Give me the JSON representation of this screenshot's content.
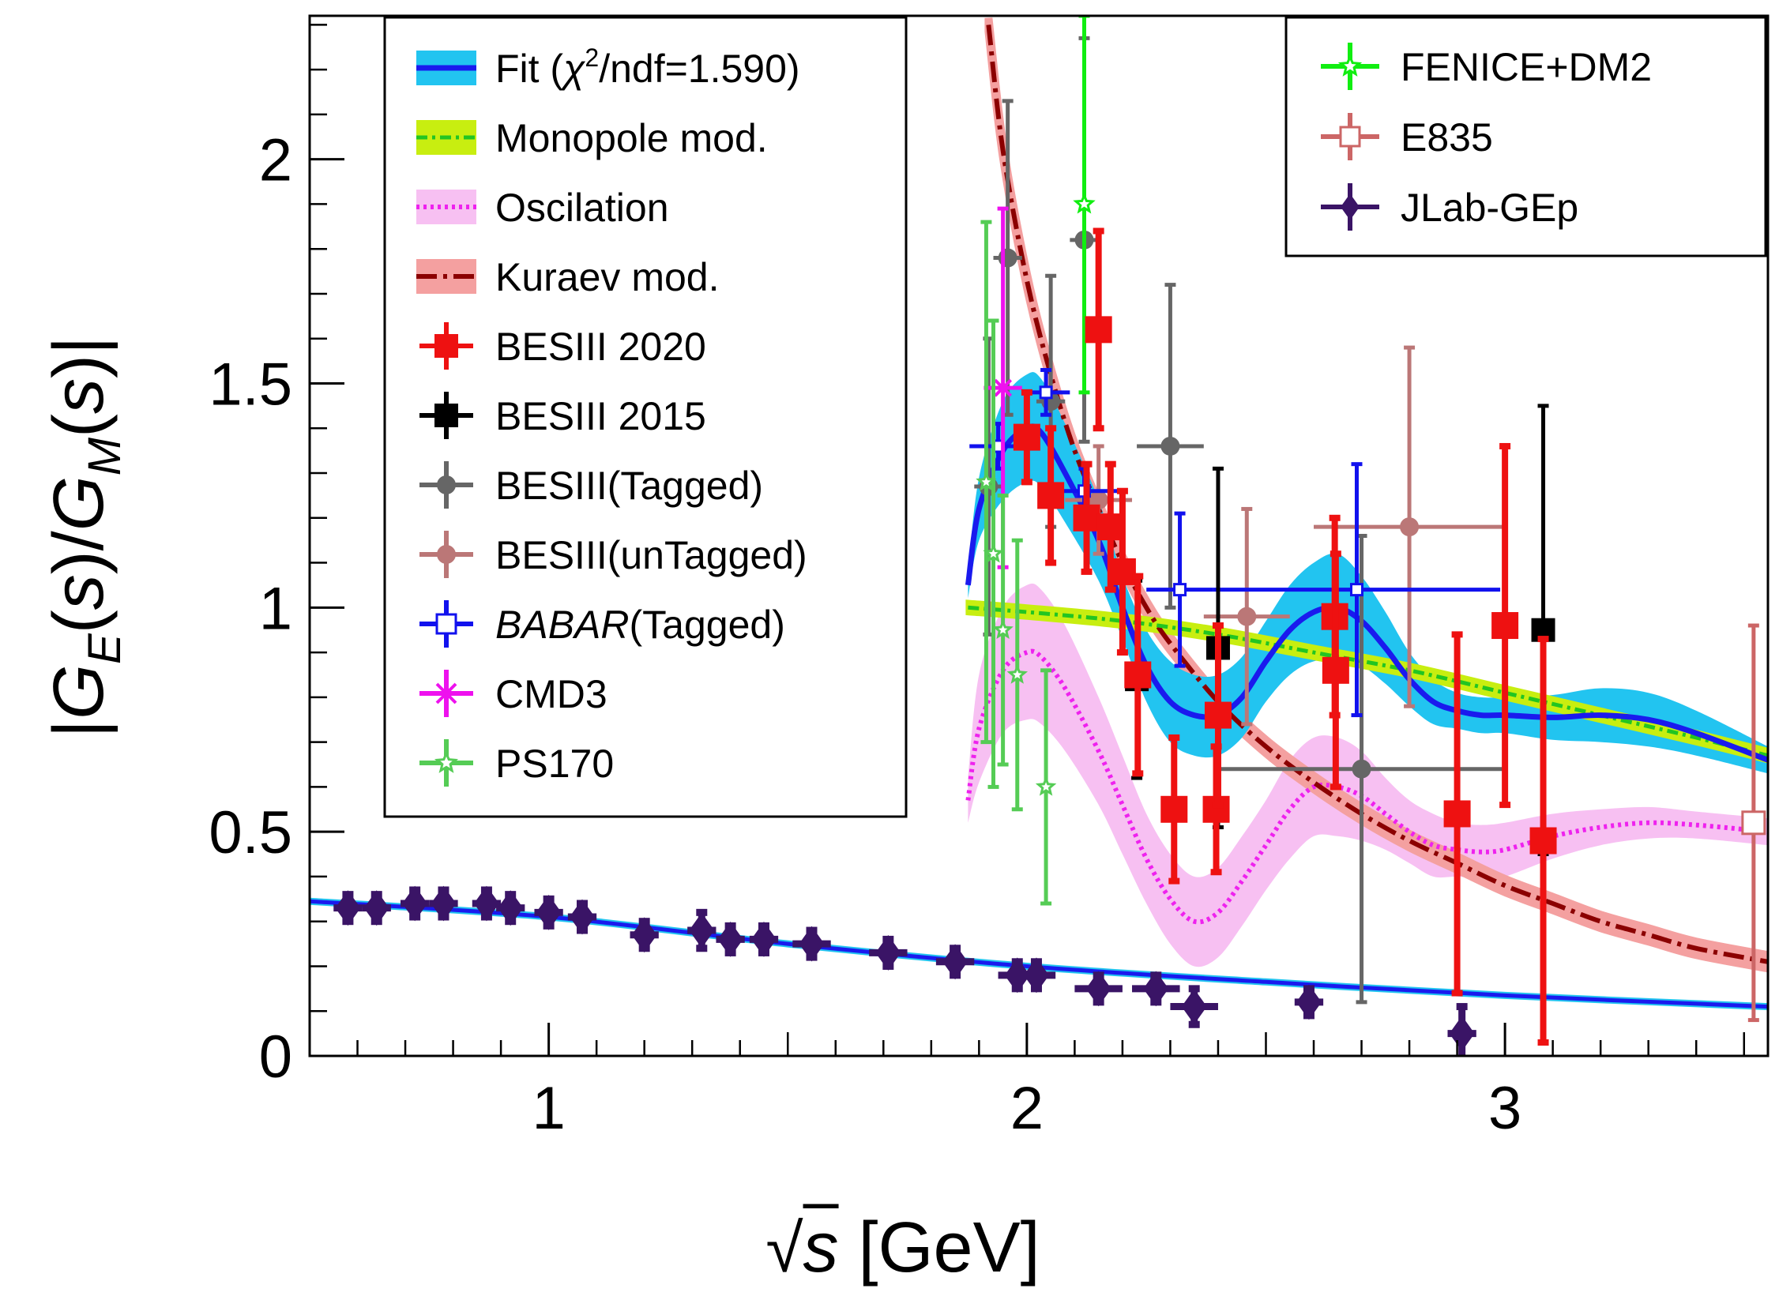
{
  "chart_data": {
    "type": "scatter",
    "xlabel": "√s [GeV]",
    "ylabel": "|G_E(s)/G_M(s)|",
    "xlim": [
      0.5,
      3.55
    ],
    "ylim": [
      0,
      2.32
    ],
    "x_ticks": [
      1,
      2,
      3
    ],
    "y_ticks": [
      0,
      0.5,
      1,
      1.5,
      2
    ],
    "tick_labels_x": [
      "1",
      "2",
      "3"
    ],
    "tick_labels_y": [
      "0",
      "0.5",
      "1",
      "1.5",
      "2"
    ],
    "legend_left": [
      {
        "key": "fit",
        "label": "Fit (χ²/ndf=1.590)"
      },
      {
        "key": "monopole",
        "label": "Monopole mod."
      },
      {
        "key": "oscillation",
        "label": "Oscilation"
      },
      {
        "key": "kuraev",
        "label": "Kuraev mod."
      },
      {
        "key": "besiii2020",
        "label": "BESIII 2020"
      },
      {
        "key": "besiii2015",
        "label": "BESIII 2015"
      },
      {
        "key": "besiii_tagged",
        "label": "BESIII(Tagged)"
      },
      {
        "key": "besiii_untagged",
        "label": "BESIII(unTagged)"
      },
      {
        "key": "babar",
        "label": "BABAR(Tagged)"
      },
      {
        "key": "cmd3",
        "label": "CMD3"
      },
      {
        "key": "ps170",
        "label": "PS170"
      }
    ],
    "legend_right": [
      {
        "key": "fenice",
        "label": "FENICE+DM2"
      },
      {
        "key": "e835",
        "label": "E835"
      },
      {
        "key": "jlab",
        "label": "JLab-GEp"
      }
    ],
    "colors": {
      "fit_line": "#1a1aee",
      "fit_band": "#22c4f0",
      "monopole_line": "#22c522",
      "monopole_band": "#c8ee10",
      "oscillation_line": "#ee22ee",
      "oscillation_band": "#f7c0f2",
      "kuraev_line": "#8b0000",
      "kuraev_band": "#f4a0a0",
      "besiii2020": "#ee1111",
      "besiii2015": "#000000",
      "besiii_tagged": "#666666",
      "besiii_untagged": "#bb7777",
      "babar": "#1111ee",
      "cmd3": "#ee11ee",
      "ps170": "#55cc55",
      "fenice": "#11ee11",
      "e835": "#cc6666",
      "jlab": "#3a1466",
      "jlab_fit": "#1a8cff"
    },
    "curves": {
      "fit": {
        "x": [
          1.877,
          1.9,
          1.95,
          2.0,
          2.03,
          2.08,
          2.15,
          2.2,
          2.25,
          2.3,
          2.35,
          2.4,
          2.45,
          2.5,
          2.55,
          2.6,
          2.65,
          2.7,
          2.75,
          2.8,
          2.85,
          2.9,
          2.95,
          3.0,
          3.1,
          3.2,
          3.3,
          3.4,
          3.55
        ],
        "y": [
          1.05,
          1.22,
          1.35,
          1.4,
          1.39,
          1.3,
          1.15,
          1.0,
          0.87,
          0.79,
          0.76,
          0.76,
          0.8,
          0.88,
          0.95,
          0.99,
          1.0,
          0.97,
          0.91,
          0.84,
          0.79,
          0.77,
          0.76,
          0.76,
          0.755,
          0.76,
          0.75,
          0.72,
          0.66
        ],
        "band": [
          0.03,
          0.07,
          0.11,
          0.12,
          0.12,
          0.11,
          0.09,
          0.07,
          0.08,
          0.09,
          0.09,
          0.09,
          0.09,
          0.09,
          0.1,
          0.11,
          0.12,
          0.1,
          0.08,
          0.06,
          0.05,
          0.04,
          0.04,
          0.04,
          0.05,
          0.06,
          0.06,
          0.05,
          0.03
        ]
      },
      "monopole": {
        "x": [
          1.877,
          2.0,
          2.2,
          2.4,
          2.6,
          2.8,
          3.0,
          3.2,
          3.4,
          3.55
        ],
        "y": [
          1.0,
          0.99,
          0.97,
          0.94,
          0.9,
          0.86,
          0.81,
          0.76,
          0.71,
          0.67
        ],
        "band": [
          0.012,
          0.012,
          0.012,
          0.012,
          0.012,
          0.012,
          0.012,
          0.012,
          0.012,
          0.012
        ]
      },
      "oscillation": {
        "x": [
          1.877,
          1.9,
          1.95,
          2.0,
          2.03,
          2.08,
          2.15,
          2.2,
          2.25,
          2.3,
          2.35,
          2.4,
          2.45,
          2.5,
          2.55,
          2.6,
          2.65,
          2.7,
          2.75,
          2.8,
          2.85,
          2.9,
          2.95,
          3.0,
          3.1,
          3.2,
          3.3,
          3.4,
          3.55
        ],
        "y": [
          0.57,
          0.73,
          0.86,
          0.9,
          0.89,
          0.82,
          0.68,
          0.56,
          0.44,
          0.35,
          0.3,
          0.32,
          0.39,
          0.47,
          0.55,
          0.6,
          0.6,
          0.58,
          0.54,
          0.5,
          0.47,
          0.46,
          0.455,
          0.46,
          0.49,
          0.51,
          0.52,
          0.515,
          0.5
        ],
        "band": [
          0.05,
          0.12,
          0.14,
          0.15,
          0.15,
          0.14,
          0.12,
          0.11,
          0.1,
          0.1,
          0.1,
          0.1,
          0.1,
          0.1,
          0.11,
          0.11,
          0.11,
          0.1,
          0.08,
          0.07,
          0.07,
          0.06,
          0.06,
          0.06,
          0.05,
          0.04,
          0.035,
          0.03,
          0.03
        ]
      },
      "kuraev": {
        "x": [
          1.92,
          1.95,
          2.0,
          2.05,
          2.1,
          2.15,
          2.2,
          2.25,
          2.3,
          2.4,
          2.5,
          2.6,
          2.7,
          2.8,
          2.9,
          3.0,
          3.1,
          3.2,
          3.3,
          3.4,
          3.55
        ],
        "y": [
          2.3,
          2.02,
          1.73,
          1.52,
          1.35,
          1.22,
          1.1,
          1.0,
          0.92,
          0.79,
          0.69,
          0.61,
          0.54,
          0.48,
          0.43,
          0.38,
          0.34,
          0.3,
          0.27,
          0.24,
          0.21
        ],
        "band": [
          0.015,
          0.015,
          0.015,
          0.015,
          0.015,
          0.015,
          0.015,
          0.015,
          0.015,
          0.015,
          0.015,
          0.015,
          0.015,
          0.015,
          0.015,
          0.015,
          0.015,
          0.015,
          0.015,
          0.015,
          0.015
        ]
      },
      "jlab_fit": {
        "x": [
          0.5,
          1.0,
          1.5,
          2.0,
          2.5,
          3.0,
          3.55
        ],
        "y": [
          0.345,
          0.31,
          0.25,
          0.2,
          0.165,
          0.135,
          0.11
        ]
      }
    },
    "series": [
      {
        "key": "jlab",
        "name": "JLab-GEp",
        "marker": "diamond",
        "x": [
          0.58,
          0.64,
          0.72,
          0.78,
          0.87,
          0.92,
          1.0,
          1.07,
          1.2,
          1.32,
          1.38,
          1.45,
          1.55,
          1.71,
          1.85,
          1.98,
          2.02,
          2.15,
          2.27,
          2.35,
          2.59,
          2.91
        ],
        "y": [
          0.33,
          0.33,
          0.34,
          0.34,
          0.34,
          0.33,
          0.32,
          0.31,
          0.27,
          0.28,
          0.26,
          0.26,
          0.25,
          0.23,
          0.21,
          0.18,
          0.18,
          0.15,
          0.15,
          0.11,
          0.12,
          0.05
        ],
        "xerr": [
          0.03,
          0.03,
          0.03,
          0.03,
          0.03,
          0.03,
          0.03,
          0.03,
          0.03,
          0.03,
          0.03,
          0.03,
          0.04,
          0.04,
          0.04,
          0.04,
          0.04,
          0.05,
          0.05,
          0.05,
          0.03,
          0.03
        ],
        "yerr": [
          0.03,
          0.03,
          0.03,
          0.03,
          0.03,
          0.03,
          0.03,
          0.03,
          0.03,
          0.04,
          0.03,
          0.03,
          0.03,
          0.03,
          0.03,
          0.03,
          0.03,
          0.03,
          0.03,
          0.04,
          0.03,
          0.06
        ]
      },
      {
        "key": "besiii_untagged",
        "name": "BESIII(unTagged)",
        "marker": "circle",
        "x": [
          2.15,
          2.46,
          2.8
        ],
        "y": [
          1.24,
          0.98,
          1.18
        ],
        "xerr": [
          0.07,
          0.09,
          0.2
        ],
        "yerr": [
          0.12,
          0.24,
          0.4
        ]
      },
      {
        "key": "besiii_tagged",
        "name": "BESIII(Tagged)",
        "marker": "circle",
        "x": [
          1.92,
          1.96,
          2.05,
          2.12,
          2.3,
          2.7
        ],
        "y": [
          1.27,
          1.78,
          1.46,
          1.82,
          1.36,
          0.64
        ],
        "xerr": [
          0.03,
          0.03,
          0.03,
          0.03,
          0.07,
          0.3
        ],
        "yerr": [
          0.33,
          0.35,
          0.28,
          0.45,
          0.36,
          0.52
        ]
      },
      {
        "key": "babar",
        "name": "BABAR(Tagged)",
        "marker": "open-square",
        "x": [
          1.94,
          2.04,
          2.12,
          2.32,
          2.69
        ],
        "y": [
          1.36,
          1.48,
          1.26,
          1.04,
          1.04
        ],
        "xerr": [
          0.06,
          0.05,
          0.07,
          0.07,
          0.3
        ],
        "yerr": [
          0.05,
          0.05,
          0.05,
          0.17,
          0.28
        ]
      },
      {
        "key": "cmd3",
        "name": "CMD3",
        "marker": "cross",
        "x": [
          1.95
        ],
        "y": [
          1.49
        ],
        "xerr": [
          0.04
        ],
        "yerr": [
          0.4
        ]
      },
      {
        "key": "ps170",
        "name": "PS170",
        "marker": "star",
        "x": [
          1.915,
          1.93,
          1.95,
          1.98,
          2.04
        ],
        "y": [
          1.28,
          1.12,
          0.95,
          0.85,
          0.6
        ],
        "xerr": [
          0.01,
          0.01,
          0.01,
          0.01,
          0.01
        ],
        "yerr": [
          0.58,
          0.52,
          0.3,
          0.3,
          0.26
        ]
      },
      {
        "key": "fenice",
        "name": "FENICE+DM2",
        "marker": "star",
        "x": [
          2.12
        ],
        "y": [
          1.9
        ],
        "xerr": [
          0.01
        ],
        "yerr": [
          0.42
        ]
      },
      {
        "key": "e835",
        "name": "E835",
        "marker": "open-square",
        "x": [
          3.52
        ],
        "y": [
          0.52
        ],
        "xerr": [
          0.0
        ],
        "yerr": [
          0.44
        ]
      },
      {
        "key": "besiii2015",
        "name": "BESIII 2015",
        "marker": "square",
        "x": [
          2.23,
          2.4,
          3.08
        ],
        "y": [
          0.84,
          0.91,
          0.95
        ],
        "xerr": [
          0.0,
          0.01,
          0.0
        ],
        "yerr": [
          0.22,
          0.4,
          0.5
        ]
      },
      {
        "key": "besiii2020",
        "name": "BESIII 2020",
        "marker": "square",
        "x": [
          2.0,
          2.05,
          2.125,
          2.15,
          2.175,
          2.2,
          2.232,
          2.308,
          2.396,
          2.4,
          2.644,
          2.646,
          2.9,
          3.0,
          3.08
        ],
        "y": [
          1.38,
          1.25,
          1.2,
          1.62,
          1.18,
          1.08,
          0.85,
          0.55,
          0.55,
          0.76,
          0.98,
          0.86,
          0.54,
          0.96,
          0.48
        ],
        "xerr": [
          0.0,
          0.0,
          0.0,
          0.0,
          0.0,
          0.0,
          0.0,
          0.0,
          0.0,
          0.0,
          0.0,
          0.0,
          0.0,
          0.0,
          0.0
        ],
        "yerr": [
          0.1,
          0.15,
          0.12,
          0.22,
          0.14,
          0.18,
          0.22,
          0.16,
          0.14,
          0.2,
          0.22,
          0.26,
          0.4,
          0.4,
          0.45
        ]
      }
    ]
  }
}
